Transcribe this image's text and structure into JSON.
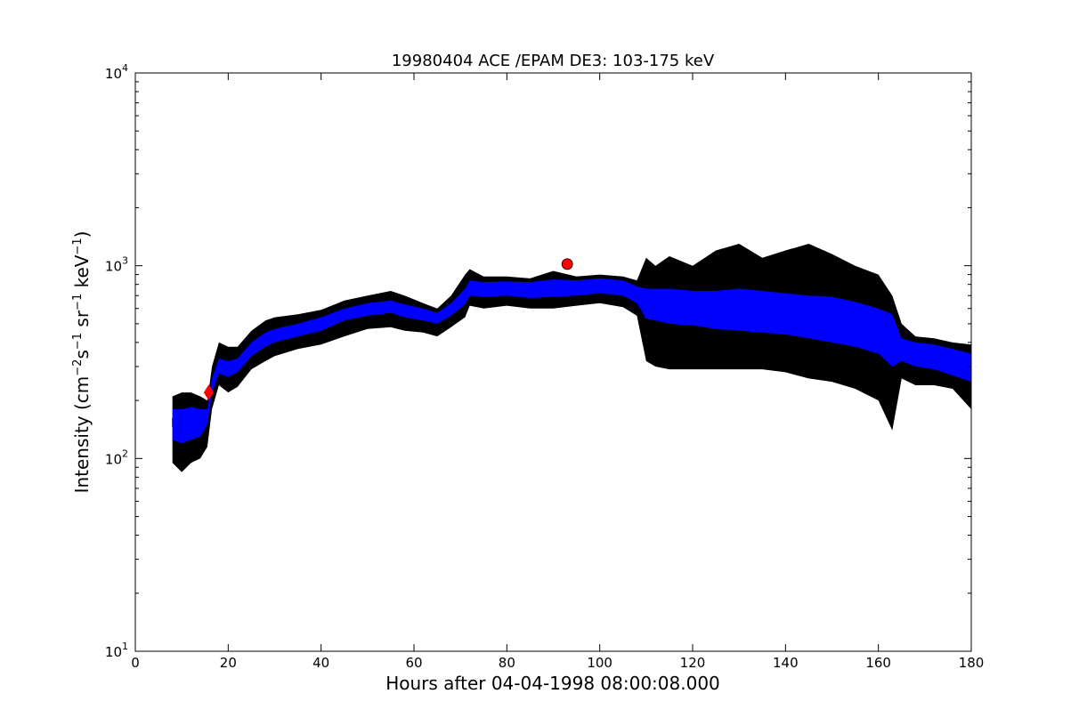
{
  "chart_data": {
    "type": "line",
    "title": "19980404 ACE /EPAM DE3: 103-175 keV",
    "xlabel": "Hours after 04-04-1998 08:00:08.000",
    "ylabel": {
      "prefix": "Intensity (cm",
      "sup1": "−2",
      "mid1": "s",
      "sup2": "−1",
      "mid2": " sr",
      "sup3": "−1",
      "mid3": " keV",
      "sup4": "−1",
      "suffix": ")"
    },
    "xlim": [
      0,
      180
    ],
    "ylim": [
      10,
      10000
    ],
    "yscale": "log",
    "grid": false,
    "legend": "none",
    "x_ticks": [
      "0",
      "20",
      "40",
      "60",
      "80",
      "100",
      "120",
      "140",
      "160",
      "180"
    ],
    "y_ticks": [
      {
        "base": "10",
        "exp": "1"
      },
      {
        "base": "10",
        "exp": "2"
      },
      {
        "base": "10",
        "exp": "3"
      },
      {
        "base": "10",
        "exp": "4"
      }
    ],
    "colors": {
      "raw": "#000000",
      "smoothed": "#0000ff",
      "marker": "#ff0000"
    },
    "series": [
      {
        "role": "raw",
        "x": [
          8,
          10,
          12,
          14,
          15.5,
          16.5,
          18,
          20,
          22,
          25,
          28,
          30,
          35,
          40,
          45,
          50,
          55,
          58,
          62,
          65,
          68,
          71,
          72,
          75,
          80,
          85,
          90,
          95,
          100,
          105,
          108,
          110,
          112,
          115,
          120,
          125,
          130,
          135,
          140,
          145,
          150,
          155,
          160,
          163,
          165,
          168,
          172,
          176,
          180
        ],
        "low": [
          95,
          85,
          95,
          100,
          115,
          180,
          240,
          220,
          235,
          290,
          320,
          340,
          370,
          390,
          430,
          470,
          480,
          460,
          450,
          430,
          480,
          540,
          620,
          600,
          620,
          600,
          600,
          620,
          640,
          610,
          550,
          320,
          300,
          290,
          290,
          290,
          290,
          290,
          280,
          260,
          250,
          230,
          200,
          140,
          260,
          240,
          240,
          230,
          180
        ],
        "high": [
          210,
          220,
          220,
          210,
          200,
          300,
          400,
          380,
          380,
          460,
          520,
          540,
          560,
          590,
          660,
          700,
          740,
          700,
          640,
          600,
          700,
          900,
          960,
          880,
          880,
          860,
          940,
          880,
          900,
          880,
          840,
          1100,
          1000,
          1120,
          1000,
          1200,
          1300,
          1100,
          1200,
          1300,
          1150,
          1000,
          900,
          700,
          500,
          430,
          420,
          400,
          390
        ]
      },
      {
        "role": "smoothed",
        "x": [
          8,
          10,
          12,
          14,
          15.5,
          16.5,
          18,
          20,
          22,
          25,
          28,
          30,
          35,
          40,
          45,
          50,
          55,
          58,
          62,
          65,
          68,
          71,
          72,
          75,
          80,
          85,
          90,
          95,
          100,
          105,
          108,
          110,
          112,
          115,
          120,
          125,
          130,
          135,
          140,
          145,
          150,
          155,
          160,
          163,
          165,
          168,
          172,
          176,
          180
        ],
        "low": [
          125,
          120,
          125,
          130,
          150,
          220,
          275,
          265,
          280,
          340,
          380,
          400,
          430,
          460,
          520,
          550,
          570,
          540,
          520,
          500,
          550,
          630,
          700,
          690,
          700,
          680,
          690,
          700,
          720,
          700,
          640,
          530,
          520,
          500,
          490,
          470,
          460,
          450,
          440,
          420,
          400,
          380,
          350,
          300,
          320,
          300,
          290,
          270,
          250
        ],
        "high": [
          180,
          180,
          185,
          180,
          180,
          260,
          330,
          320,
          330,
          400,
          450,
          470,
          500,
          540,
          600,
          640,
          660,
          630,
          600,
          570,
          640,
          760,
          840,
          820,
          830,
          820,
          850,
          840,
          860,
          840,
          780,
          760,
          760,
          760,
          740,
          740,
          760,
          740,
          720,
          700,
          690,
          650,
          600,
          560,
          420,
          400,
          390,
          370,
          350
        ]
      },
      {
        "role": "markers",
        "points": [
          {
            "x": 15.8,
            "y": 220,
            "shape": "diamond"
          },
          {
            "x": 93,
            "y": 1020,
            "shape": "circle"
          }
        ]
      }
    ]
  }
}
